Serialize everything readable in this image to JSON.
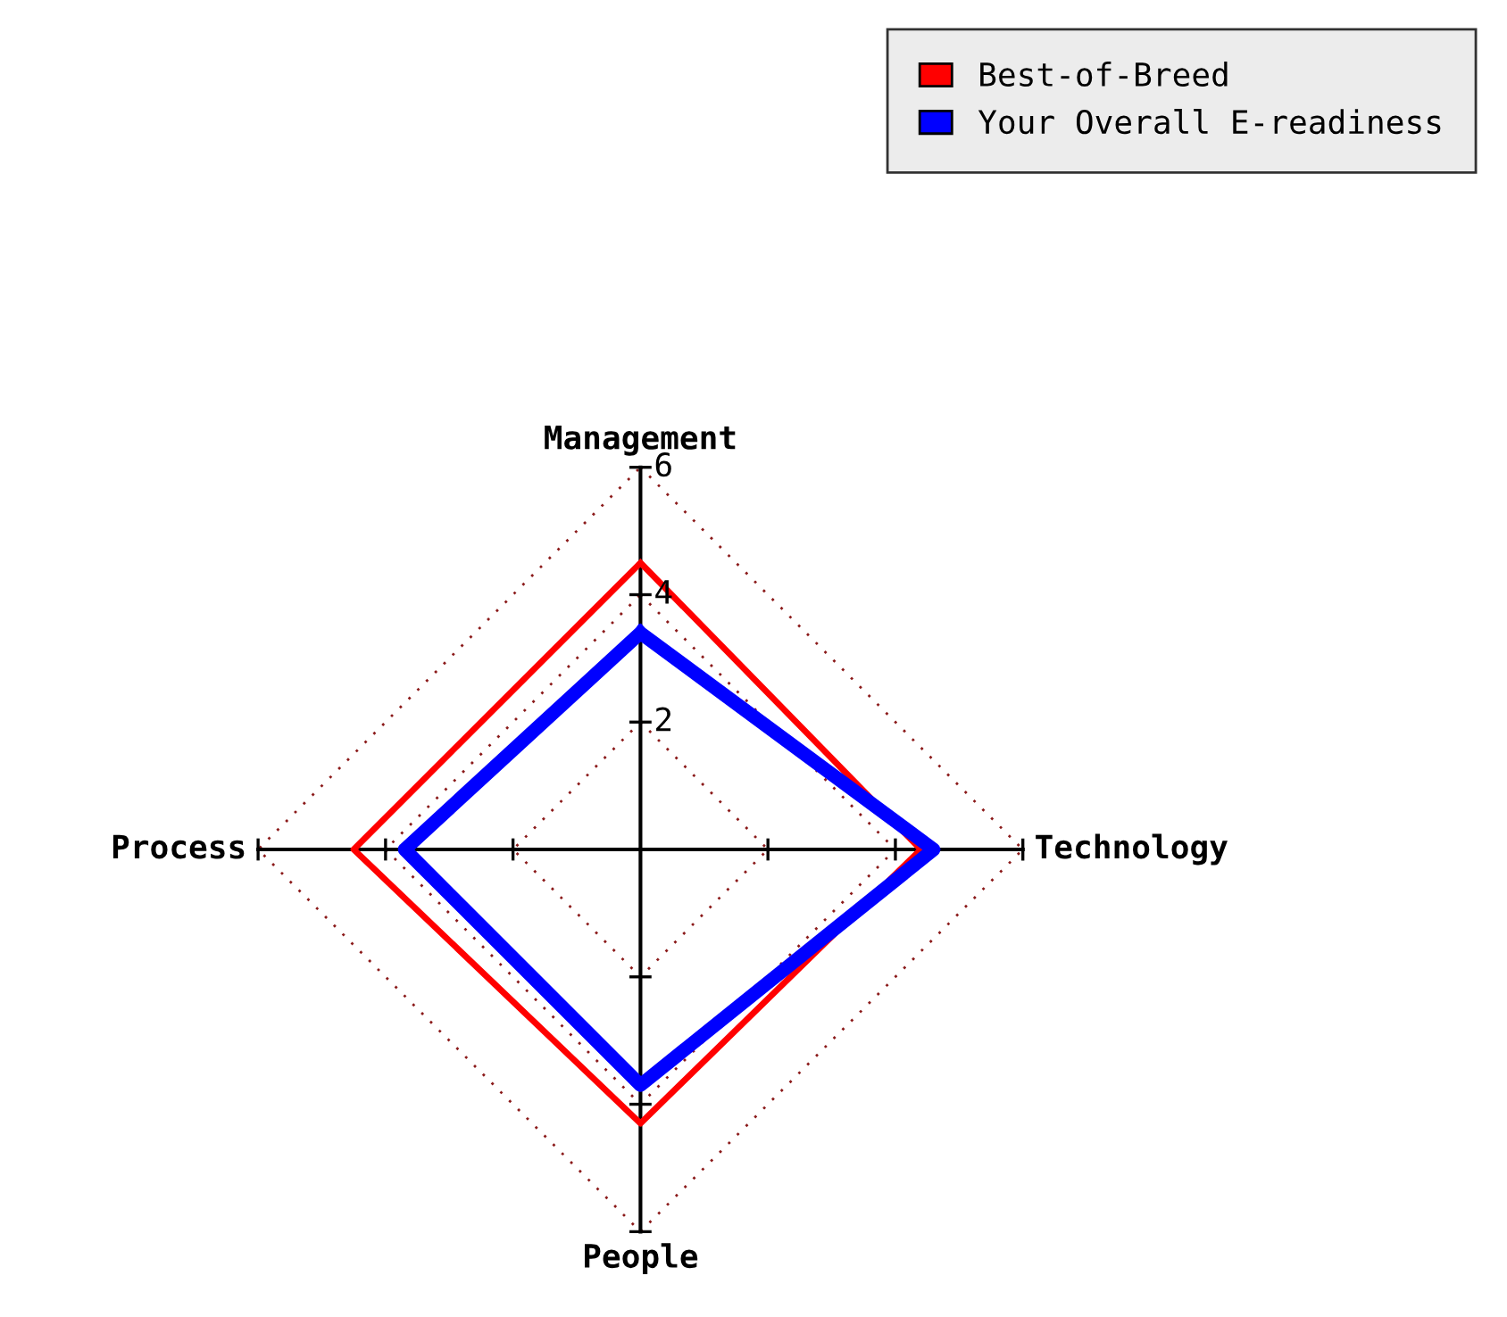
{
  "chart_data": {
    "type": "radar",
    "categories": [
      "Management",
      "Technology",
      "People",
      "Process"
    ],
    "series": [
      {
        "name": "Best-of-Breed",
        "color": "#ff0000",
        "values": [
          4.5,
          4.4,
          4.3,
          4.5
        ]
      },
      {
        "name": "Your Overall E-readiness",
        "color": "#0000ff",
        "values": [
          3.4,
          4.6,
          3.7,
          3.7
        ]
      }
    ],
    "ylim": [
      0,
      6
    ],
    "yticks": [
      2,
      4,
      6
    ],
    "grid": true,
    "legend": "top right"
  }
}
